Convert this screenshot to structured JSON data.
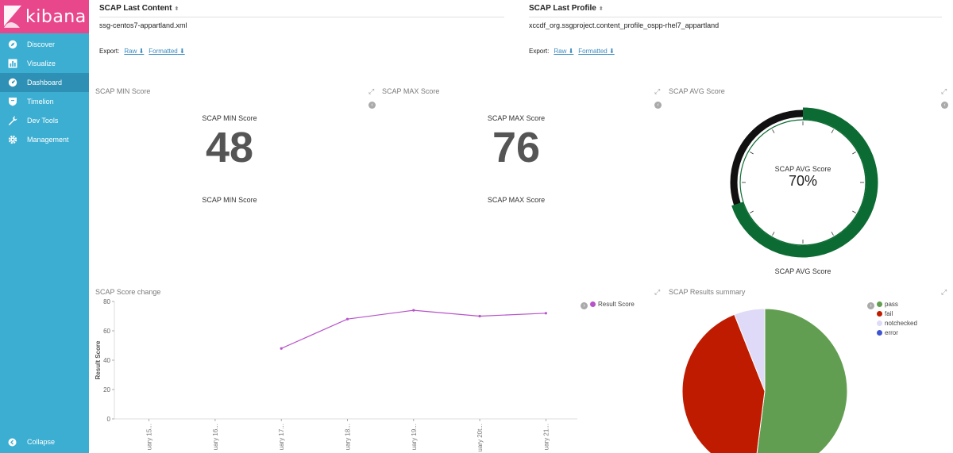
{
  "app": {
    "title": "kibana"
  },
  "sidebar": {
    "items": [
      {
        "label": "Discover",
        "icon": "compass-icon"
      },
      {
        "label": "Visualize",
        "icon": "bar-chart-icon"
      },
      {
        "label": "Dashboard",
        "icon": "dashboard-icon",
        "active": true
      },
      {
        "label": "Timelion",
        "icon": "shield-icon"
      },
      {
        "label": "Dev Tools",
        "icon": "wrench-icon"
      },
      {
        "label": "Management",
        "icon": "gear-icon"
      }
    ],
    "collapse_label": "Collapse"
  },
  "content_panel": {
    "header": "SCAP Last Content",
    "value": "ssg-centos7-appartland.xml",
    "export_label": "Export:",
    "raw_label": "Raw",
    "formatted_label": "Formatted"
  },
  "profile_panel": {
    "header": "SCAP Last Profile",
    "value": "xccdf_org.ssgproject.content_profile_ospp-rhel7_appartland",
    "export_label": "Export:",
    "raw_label": "Raw",
    "formatted_label": "Formatted"
  },
  "min_panel": {
    "title": "SCAP MIN Score",
    "label_top": "SCAP MIN Score",
    "value": "48",
    "label_bottom": "SCAP MIN Score"
  },
  "max_panel": {
    "title": "SCAP MAX Score",
    "label_top": "SCAP MAX Score",
    "value": "76",
    "label_bottom": "SCAP MAX Score"
  },
  "avg_panel": {
    "title": "SCAP AVG Score",
    "label": "SCAP AVG Score",
    "value": "70%",
    "fraction": 0.7,
    "bottom_label": "SCAP AVG Score",
    "colors": {
      "fill": "#0b6b32",
      "rest": "#111111"
    }
  },
  "score_change": {
    "title": "SCAP Score change",
    "legend": "Result Score",
    "color": "#b753c9"
  },
  "results_summary": {
    "title": "SCAP Results summary",
    "legend": [
      {
        "label": "pass",
        "color": "#629e51"
      },
      {
        "label": "fail",
        "color": "#bf1b00"
      },
      {
        "label": "notchecked",
        "color": "#dedaf7"
      },
      {
        "label": "error",
        "color": "#3f54d1"
      }
    ]
  },
  "chart_data": [
    {
      "type": "line",
      "title": "SCAP Score change",
      "xlabel": "",
      "ylabel": "Result Score",
      "categories": [
        "uary 15...",
        "uary 16...",
        "uary 17...",
        "uary 18...",
        "uary 19...",
        "uary 20t...",
        "uary 21..."
      ],
      "series": [
        {
          "name": "Result Score",
          "values": [
            null,
            null,
            48,
            68,
            74,
            70,
            72
          ]
        }
      ],
      "ylim": [
        0,
        80
      ],
      "yticks": [
        0,
        20,
        40,
        60,
        80
      ],
      "legend": "top-right"
    },
    {
      "type": "pie",
      "title": "SCAP Results summary",
      "categories": [
        "pass",
        "fail",
        "notchecked",
        "error"
      ],
      "values": [
        52,
        42,
        6,
        0
      ],
      "legend": "top-right"
    }
  ]
}
